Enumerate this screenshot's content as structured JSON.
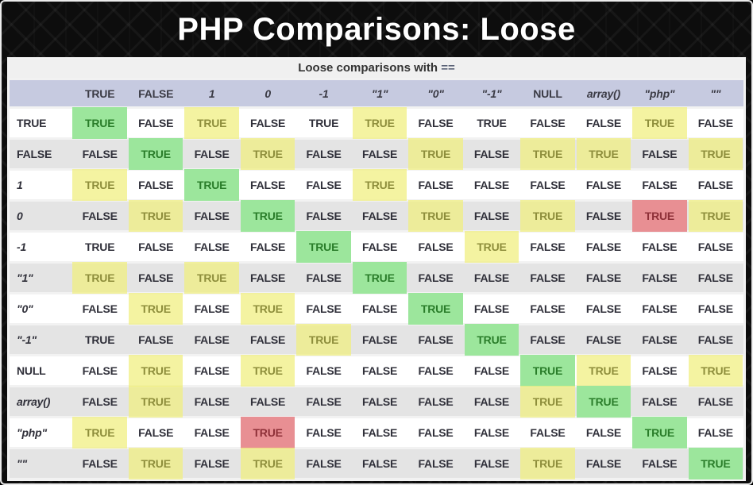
{
  "slide": {
    "title": "PHP Comparisons: Loose"
  },
  "colors": {
    "page_background": "#0d0d0d",
    "header_row_background": "#c6cae0",
    "alt_row_background": "#e4e4e4",
    "true_match_green": "#9ce69c",
    "highlight_yellow": "#f2f09a",
    "warning_red": "#e88f93",
    "text_dark": "#30303a"
  },
  "chart_data": {
    "type": "table",
    "caption": "Loose comparisons with",
    "caption_operator": "==",
    "corner_label": "",
    "columns": [
      {
        "label": "TRUE",
        "italic": false
      },
      {
        "label": "FALSE",
        "italic": false
      },
      {
        "label": "1",
        "italic": true
      },
      {
        "label": "0",
        "italic": true
      },
      {
        "label": "-1",
        "italic": true
      },
      {
        "label": "\"1\"",
        "italic": true
      },
      {
        "label": "\"0\"",
        "italic": true
      },
      {
        "label": "\"-1\"",
        "italic": true
      },
      {
        "label": "NULL",
        "italic": false
      },
      {
        "label": "array()",
        "italic": true
      },
      {
        "label": "\"php\"",
        "italic": true
      },
      {
        "label": "\"\"",
        "italic": true
      }
    ],
    "rows": [
      {
        "label": "TRUE",
        "italic": false,
        "cells": [
          [
            "TRUE",
            "green"
          ],
          [
            "FALSE",
            "none"
          ],
          [
            "TRUE",
            "yellow"
          ],
          [
            "FALSE",
            "none"
          ],
          [
            "TRUE",
            "none"
          ],
          [
            "TRUE",
            "yellow"
          ],
          [
            "FALSE",
            "none"
          ],
          [
            "TRUE",
            "none"
          ],
          [
            "FALSE",
            "none"
          ],
          [
            "FALSE",
            "none"
          ],
          [
            "TRUE",
            "yellow"
          ],
          [
            "FALSE",
            "none"
          ]
        ]
      },
      {
        "label": "FALSE",
        "italic": false,
        "cells": [
          [
            "FALSE",
            "none"
          ],
          [
            "TRUE",
            "green"
          ],
          [
            "FALSE",
            "none"
          ],
          [
            "TRUE",
            "yellow"
          ],
          [
            "FALSE",
            "none"
          ],
          [
            "FALSE",
            "none"
          ],
          [
            "TRUE",
            "yellow"
          ],
          [
            "FALSE",
            "none"
          ],
          [
            "TRUE",
            "yellow"
          ],
          [
            "TRUE",
            "yellow"
          ],
          [
            "FALSE",
            "none"
          ],
          [
            "TRUE",
            "yellow"
          ]
        ]
      },
      {
        "label": "1",
        "italic": true,
        "cells": [
          [
            "TRUE",
            "yellow"
          ],
          [
            "FALSE",
            "none"
          ],
          [
            "TRUE",
            "green"
          ],
          [
            "FALSE",
            "none"
          ],
          [
            "FALSE",
            "none"
          ],
          [
            "TRUE",
            "yellow"
          ],
          [
            "FALSE",
            "none"
          ],
          [
            "FALSE",
            "none"
          ],
          [
            "FALSE",
            "none"
          ],
          [
            "FALSE",
            "none"
          ],
          [
            "FALSE",
            "none"
          ],
          [
            "FALSE",
            "none"
          ]
        ]
      },
      {
        "label": "0",
        "italic": true,
        "cells": [
          [
            "FALSE",
            "none"
          ],
          [
            "TRUE",
            "yellow"
          ],
          [
            "FALSE",
            "none"
          ],
          [
            "TRUE",
            "green"
          ],
          [
            "FALSE",
            "none"
          ],
          [
            "FALSE",
            "none"
          ],
          [
            "TRUE",
            "yellow"
          ],
          [
            "FALSE",
            "none"
          ],
          [
            "TRUE",
            "yellow"
          ],
          [
            "FALSE",
            "none"
          ],
          [
            "TRUE",
            "red"
          ],
          [
            "TRUE",
            "yellow"
          ]
        ]
      },
      {
        "label": "-1",
        "italic": true,
        "cells": [
          [
            "TRUE",
            "none"
          ],
          [
            "FALSE",
            "none"
          ],
          [
            "FALSE",
            "none"
          ],
          [
            "FALSE",
            "none"
          ],
          [
            "TRUE",
            "green"
          ],
          [
            "FALSE",
            "none"
          ],
          [
            "FALSE",
            "none"
          ],
          [
            "TRUE",
            "yellow"
          ],
          [
            "FALSE",
            "none"
          ],
          [
            "FALSE",
            "none"
          ],
          [
            "FALSE",
            "none"
          ],
          [
            "FALSE",
            "none"
          ]
        ]
      },
      {
        "label": "\"1\"",
        "italic": true,
        "cells": [
          [
            "TRUE",
            "yellow"
          ],
          [
            "FALSE",
            "none"
          ],
          [
            "TRUE",
            "yellow"
          ],
          [
            "FALSE",
            "none"
          ],
          [
            "FALSE",
            "none"
          ],
          [
            "TRUE",
            "green"
          ],
          [
            "FALSE",
            "none"
          ],
          [
            "FALSE",
            "none"
          ],
          [
            "FALSE",
            "none"
          ],
          [
            "FALSE",
            "none"
          ],
          [
            "FALSE",
            "none"
          ],
          [
            "FALSE",
            "none"
          ]
        ]
      },
      {
        "label": "\"0\"",
        "italic": true,
        "cells": [
          [
            "FALSE",
            "none"
          ],
          [
            "TRUE",
            "yellow"
          ],
          [
            "FALSE",
            "none"
          ],
          [
            "TRUE",
            "yellow"
          ],
          [
            "FALSE",
            "none"
          ],
          [
            "FALSE",
            "none"
          ],
          [
            "TRUE",
            "green"
          ],
          [
            "FALSE",
            "none"
          ],
          [
            "FALSE",
            "none"
          ],
          [
            "FALSE",
            "none"
          ],
          [
            "FALSE",
            "none"
          ],
          [
            "FALSE",
            "none"
          ]
        ]
      },
      {
        "label": "\"-1\"",
        "italic": true,
        "cells": [
          [
            "TRUE",
            "none"
          ],
          [
            "FALSE",
            "none"
          ],
          [
            "FALSE",
            "none"
          ],
          [
            "FALSE",
            "none"
          ],
          [
            "TRUE",
            "yellow"
          ],
          [
            "FALSE",
            "none"
          ],
          [
            "FALSE",
            "none"
          ],
          [
            "TRUE",
            "green"
          ],
          [
            "FALSE",
            "none"
          ],
          [
            "FALSE",
            "none"
          ],
          [
            "FALSE",
            "none"
          ],
          [
            "FALSE",
            "none"
          ]
        ]
      },
      {
        "label": "NULL",
        "italic": false,
        "cells": [
          [
            "FALSE",
            "none"
          ],
          [
            "TRUE",
            "yellow"
          ],
          [
            "FALSE",
            "none"
          ],
          [
            "TRUE",
            "yellow"
          ],
          [
            "FALSE",
            "none"
          ],
          [
            "FALSE",
            "none"
          ],
          [
            "FALSE",
            "none"
          ],
          [
            "FALSE",
            "none"
          ],
          [
            "TRUE",
            "green"
          ],
          [
            "TRUE",
            "yellow"
          ],
          [
            "FALSE",
            "none"
          ],
          [
            "TRUE",
            "yellow"
          ]
        ]
      },
      {
        "label": "array()",
        "italic": true,
        "cells": [
          [
            "FALSE",
            "none"
          ],
          [
            "TRUE",
            "yellow"
          ],
          [
            "FALSE",
            "none"
          ],
          [
            "FALSE",
            "none"
          ],
          [
            "FALSE",
            "none"
          ],
          [
            "FALSE",
            "none"
          ],
          [
            "FALSE",
            "none"
          ],
          [
            "FALSE",
            "none"
          ],
          [
            "TRUE",
            "yellow"
          ],
          [
            "TRUE",
            "green"
          ],
          [
            "FALSE",
            "none"
          ],
          [
            "FALSE",
            "none"
          ]
        ]
      },
      {
        "label": "\"php\"",
        "italic": true,
        "cells": [
          [
            "TRUE",
            "yellow"
          ],
          [
            "FALSE",
            "none"
          ],
          [
            "FALSE",
            "none"
          ],
          [
            "TRUE",
            "red"
          ],
          [
            "FALSE",
            "none"
          ],
          [
            "FALSE",
            "none"
          ],
          [
            "FALSE",
            "none"
          ],
          [
            "FALSE",
            "none"
          ],
          [
            "FALSE",
            "none"
          ],
          [
            "FALSE",
            "none"
          ],
          [
            "TRUE",
            "green"
          ],
          [
            "FALSE",
            "none"
          ]
        ]
      },
      {
        "label": "\"\"",
        "italic": true,
        "cells": [
          [
            "FALSE",
            "none"
          ],
          [
            "TRUE",
            "yellow"
          ],
          [
            "FALSE",
            "none"
          ],
          [
            "TRUE",
            "yellow"
          ],
          [
            "FALSE",
            "none"
          ],
          [
            "FALSE",
            "none"
          ],
          [
            "FALSE",
            "none"
          ],
          [
            "FALSE",
            "none"
          ],
          [
            "TRUE",
            "yellow"
          ],
          [
            "FALSE",
            "none"
          ],
          [
            "FALSE",
            "none"
          ],
          [
            "TRUE",
            "green"
          ]
        ]
      }
    ]
  }
}
